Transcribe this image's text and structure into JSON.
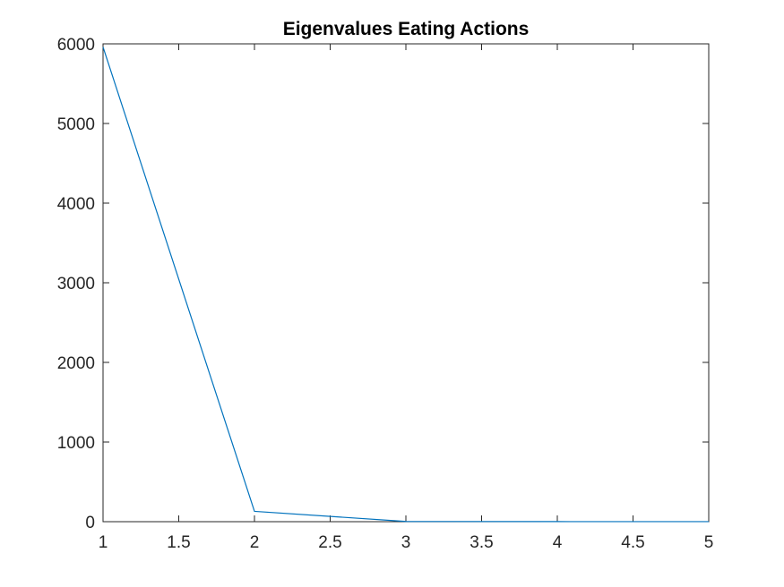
{
  "chart_data": {
    "type": "line",
    "title": "Eigenvalues Eating Actions",
    "xlabel": "",
    "ylabel": "",
    "xlim": [
      1,
      5
    ],
    "ylim": [
      0,
      6000
    ],
    "x_ticks": [
      1,
      1.5,
      2,
      2.5,
      3,
      3.5,
      4,
      4.5,
      5
    ],
    "x_tick_labels": [
      "1",
      "1.5",
      "2",
      "2.5",
      "3",
      "3.5",
      "4",
      "4.5",
      "5"
    ],
    "y_ticks": [
      0,
      1000,
      2000,
      3000,
      4000,
      5000,
      6000
    ],
    "y_tick_labels": [
      "0",
      "1000",
      "2000",
      "3000",
      "4000",
      "5000",
      "6000"
    ],
    "grid": false,
    "series": [
      {
        "x": [
          1,
          2,
          3,
          4,
          5
        ],
        "values": [
          5960,
          130,
          3,
          1,
          0.5
        ],
        "color": "#0072BD"
      }
    ]
  }
}
